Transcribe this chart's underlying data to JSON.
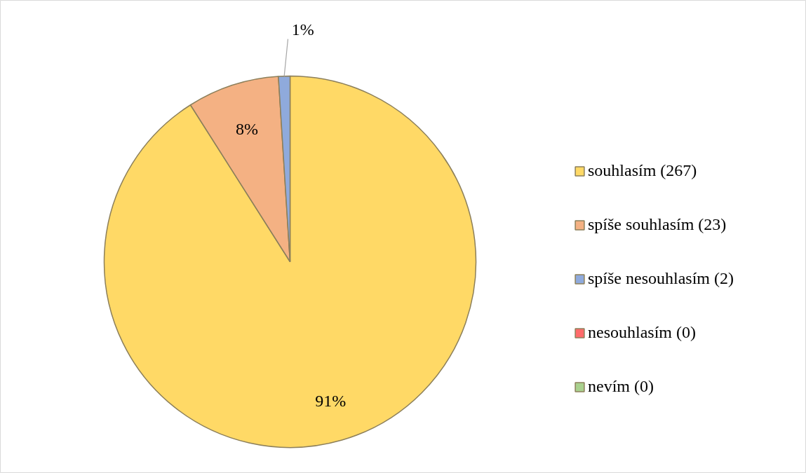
{
  "chart_data": {
    "type": "pie",
    "categories": [
      "souhlasím (267)",
      "spíše souhlasím (23)",
      "spíše nesouhlasím (2)",
      "nesouhlasím (0)",
      "nevím (0)"
    ],
    "values": [
      91,
      8,
      1,
      0,
      0
    ],
    "colors": [
      "#ffd966",
      "#f4b183",
      "#8faadc",
      "#ff6b6b",
      "#a9d18e"
    ],
    "value_labels": [
      "91%",
      "8%",
      "1%",
      null,
      null
    ],
    "legend": "right"
  }
}
